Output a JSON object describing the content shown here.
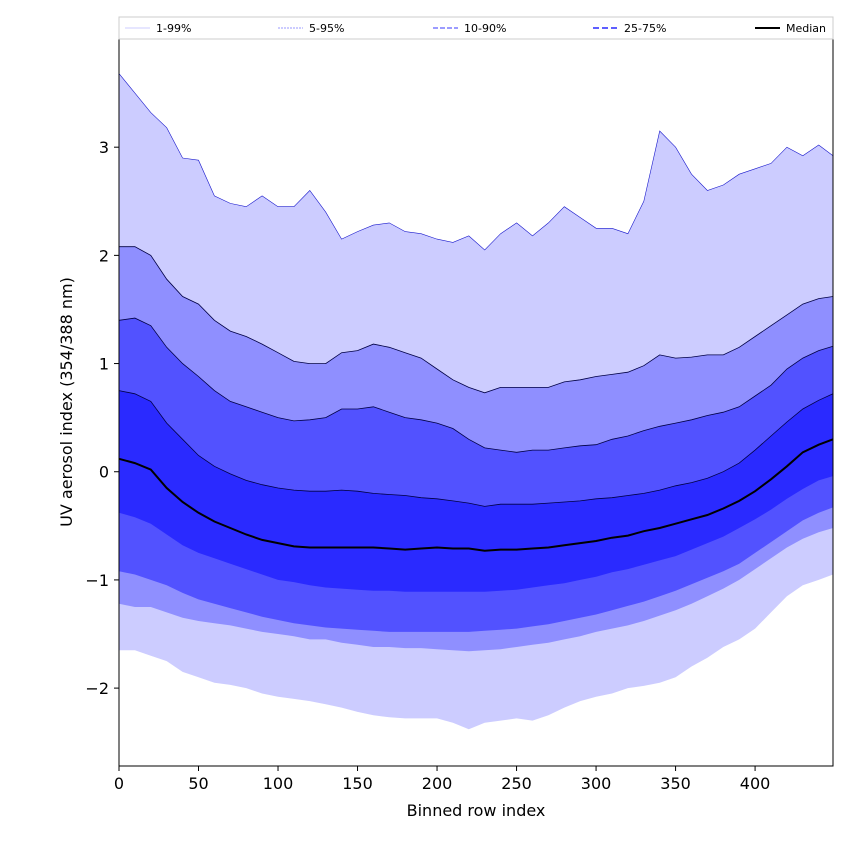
{
  "chart_data": {
    "type": "area",
    "xlabel": "Binned row index",
    "ylabel": "UV aerosol index (354/388 nm)",
    "xlim": [
      0,
      449
    ],
    "ylim": [
      -2.72,
      4.0
    ],
    "xticks": [
      0,
      50,
      100,
      150,
      200,
      250,
      300,
      350,
      400
    ],
    "yticks": [
      -2,
      -1,
      0,
      1,
      2,
      3
    ],
    "ytick_labels": [
      "−2",
      "−1",
      "0",
      "1",
      "2",
      "3"
    ],
    "grid": false,
    "legend_position": "top",
    "x": [
      0,
      10,
      20,
      30,
      40,
      50,
      60,
      70,
      80,
      90,
      100,
      110,
      120,
      130,
      140,
      150,
      160,
      170,
      180,
      190,
      200,
      210,
      220,
      230,
      240,
      250,
      260,
      270,
      280,
      290,
      300,
      310,
      320,
      330,
      340,
      350,
      360,
      370,
      380,
      390,
      400,
      410,
      420,
      430,
      440,
      449
    ],
    "series": [
      {
        "name": "1-99%",
        "color": "#ccccff",
        "upper": [
          3.68,
          3.5,
          3.32,
          3.18,
          2.9,
          2.88,
          2.55,
          2.48,
          2.45,
          2.55,
          2.45,
          2.45,
          2.6,
          2.4,
          2.15,
          2.22,
          2.28,
          2.3,
          2.22,
          2.2,
          2.15,
          2.12,
          2.18,
          2.05,
          2.2,
          2.3,
          2.18,
          2.3,
          2.45,
          2.35,
          2.25,
          2.25,
          2.2,
          2.5,
          3.15,
          3.0,
          2.75,
          2.6,
          2.65,
          2.75,
          2.8,
          2.85,
          3.0,
          2.92,
          3.02,
          2.92
        ],
        "lower": [
          -1.65,
          -1.65,
          -1.7,
          -1.75,
          -1.85,
          -1.9,
          -1.95,
          -1.97,
          -2.0,
          -2.05,
          -2.08,
          -2.1,
          -2.12,
          -2.15,
          -2.18,
          -2.22,
          -2.25,
          -2.27,
          -2.28,
          -2.28,
          -2.28,
          -2.32,
          -2.38,
          -2.32,
          -2.3,
          -2.28,
          -2.3,
          -2.25,
          -2.18,
          -2.12,
          -2.08,
          -2.05,
          -2.0,
          -1.98,
          -1.95,
          -1.9,
          -1.8,
          -1.72,
          -1.62,
          -1.55,
          -1.45,
          -1.3,
          -1.15,
          -1.05,
          -1.0,
          -0.95
        ]
      },
      {
        "name": "5-95%",
        "color": "#8f8fff",
        "upper": [
          2.08,
          2.08,
          2.0,
          1.78,
          1.62,
          1.55,
          1.4,
          1.3,
          1.25,
          1.18,
          1.1,
          1.02,
          1.0,
          1.0,
          1.1,
          1.12,
          1.18,
          1.15,
          1.1,
          1.05,
          0.95,
          0.85,
          0.78,
          0.73,
          0.78,
          0.78,
          0.78,
          0.78,
          0.83,
          0.85,
          0.88,
          0.9,
          0.92,
          0.98,
          1.08,
          1.05,
          1.06,
          1.08,
          1.08,
          1.15,
          1.25,
          1.35,
          1.45,
          1.55,
          1.6,
          1.62
        ],
        "lower": [
          -1.22,
          -1.25,
          -1.25,
          -1.3,
          -1.35,
          -1.38,
          -1.4,
          -1.42,
          -1.45,
          -1.48,
          -1.5,
          -1.52,
          -1.55,
          -1.55,
          -1.58,
          -1.6,
          -1.62,
          -1.62,
          -1.63,
          -1.63,
          -1.64,
          -1.65,
          -1.66,
          -1.65,
          -1.64,
          -1.62,
          -1.6,
          -1.58,
          -1.55,
          -1.52,
          -1.48,
          -1.45,
          -1.42,
          -1.38,
          -1.33,
          -1.28,
          -1.22,
          -1.15,
          -1.08,
          -1.0,
          -0.9,
          -0.8,
          -0.7,
          -0.62,
          -0.56,
          -0.52
        ]
      },
      {
        "name": "10-90%",
        "color": "#5252ff",
        "upper": [
          1.4,
          1.42,
          1.35,
          1.15,
          1.0,
          0.88,
          0.75,
          0.65,
          0.6,
          0.55,
          0.5,
          0.47,
          0.48,
          0.5,
          0.58,
          0.58,
          0.6,
          0.55,
          0.5,
          0.48,
          0.45,
          0.4,
          0.3,
          0.22,
          0.2,
          0.18,
          0.2,
          0.2,
          0.22,
          0.24,
          0.25,
          0.3,
          0.33,
          0.38,
          0.42,
          0.45,
          0.48,
          0.52,
          0.55,
          0.6,
          0.7,
          0.8,
          0.95,
          1.05,
          1.12,
          1.16
        ],
        "lower": [
          -0.92,
          -0.95,
          -1.0,
          -1.05,
          -1.12,
          -1.18,
          -1.22,
          -1.26,
          -1.3,
          -1.34,
          -1.37,
          -1.4,
          -1.42,
          -1.44,
          -1.45,
          -1.46,
          -1.47,
          -1.48,
          -1.48,
          -1.48,
          -1.48,
          -1.48,
          -1.48,
          -1.47,
          -1.46,
          -1.45,
          -1.43,
          -1.41,
          -1.38,
          -1.35,
          -1.32,
          -1.28,
          -1.24,
          -1.2,
          -1.15,
          -1.1,
          -1.04,
          -0.98,
          -0.92,
          -0.85,
          -0.75,
          -0.65,
          -0.55,
          -0.45,
          -0.38,
          -0.33
        ]
      },
      {
        "name": "25-75%",
        "color": "#2a2aff",
        "upper": [
          0.75,
          0.72,
          0.65,
          0.45,
          0.3,
          0.15,
          0.05,
          -0.02,
          -0.08,
          -0.12,
          -0.15,
          -0.17,
          -0.18,
          -0.18,
          -0.17,
          -0.18,
          -0.2,
          -0.21,
          -0.22,
          -0.24,
          -0.25,
          -0.27,
          -0.29,
          -0.32,
          -0.3,
          -0.3,
          -0.3,
          -0.29,
          -0.28,
          -0.27,
          -0.25,
          -0.24,
          -0.22,
          -0.2,
          -0.17,
          -0.13,
          -0.1,
          -0.06,
          0.0,
          0.08,
          0.2,
          0.33,
          0.46,
          0.58,
          0.66,
          0.72
        ],
        "lower": [
          -0.38,
          -0.42,
          -0.48,
          -0.58,
          -0.68,
          -0.75,
          -0.8,
          -0.85,
          -0.9,
          -0.95,
          -1.0,
          -1.02,
          -1.05,
          -1.07,
          -1.08,
          -1.09,
          -1.1,
          -1.1,
          -1.11,
          -1.11,
          -1.11,
          -1.11,
          -1.11,
          -1.11,
          -1.1,
          -1.09,
          -1.07,
          -1.05,
          -1.03,
          -1.0,
          -0.97,
          -0.93,
          -0.9,
          -0.86,
          -0.82,
          -0.78,
          -0.72,
          -0.66,
          -0.6,
          -0.52,
          -0.44,
          -0.35,
          -0.25,
          -0.16,
          -0.08,
          -0.04
        ]
      },
      {
        "name": "Median",
        "color": "#000000",
        "values": [
          0.12,
          0.08,
          0.02,
          -0.15,
          -0.28,
          -0.38,
          -0.46,
          -0.52,
          -0.58,
          -0.63,
          -0.66,
          -0.69,
          -0.7,
          -0.7,
          -0.7,
          -0.7,
          -0.7,
          -0.71,
          -0.72,
          -0.71,
          -0.7,
          -0.71,
          -0.71,
          -0.73,
          -0.72,
          -0.72,
          -0.71,
          -0.7,
          -0.68,
          -0.66,
          -0.64,
          -0.61,
          -0.59,
          -0.55,
          -0.52,
          -0.48,
          -0.44,
          -0.4,
          -0.34,
          -0.27,
          -0.18,
          -0.07,
          0.05,
          0.18,
          0.25,
          0.3
        ]
      }
    ]
  }
}
